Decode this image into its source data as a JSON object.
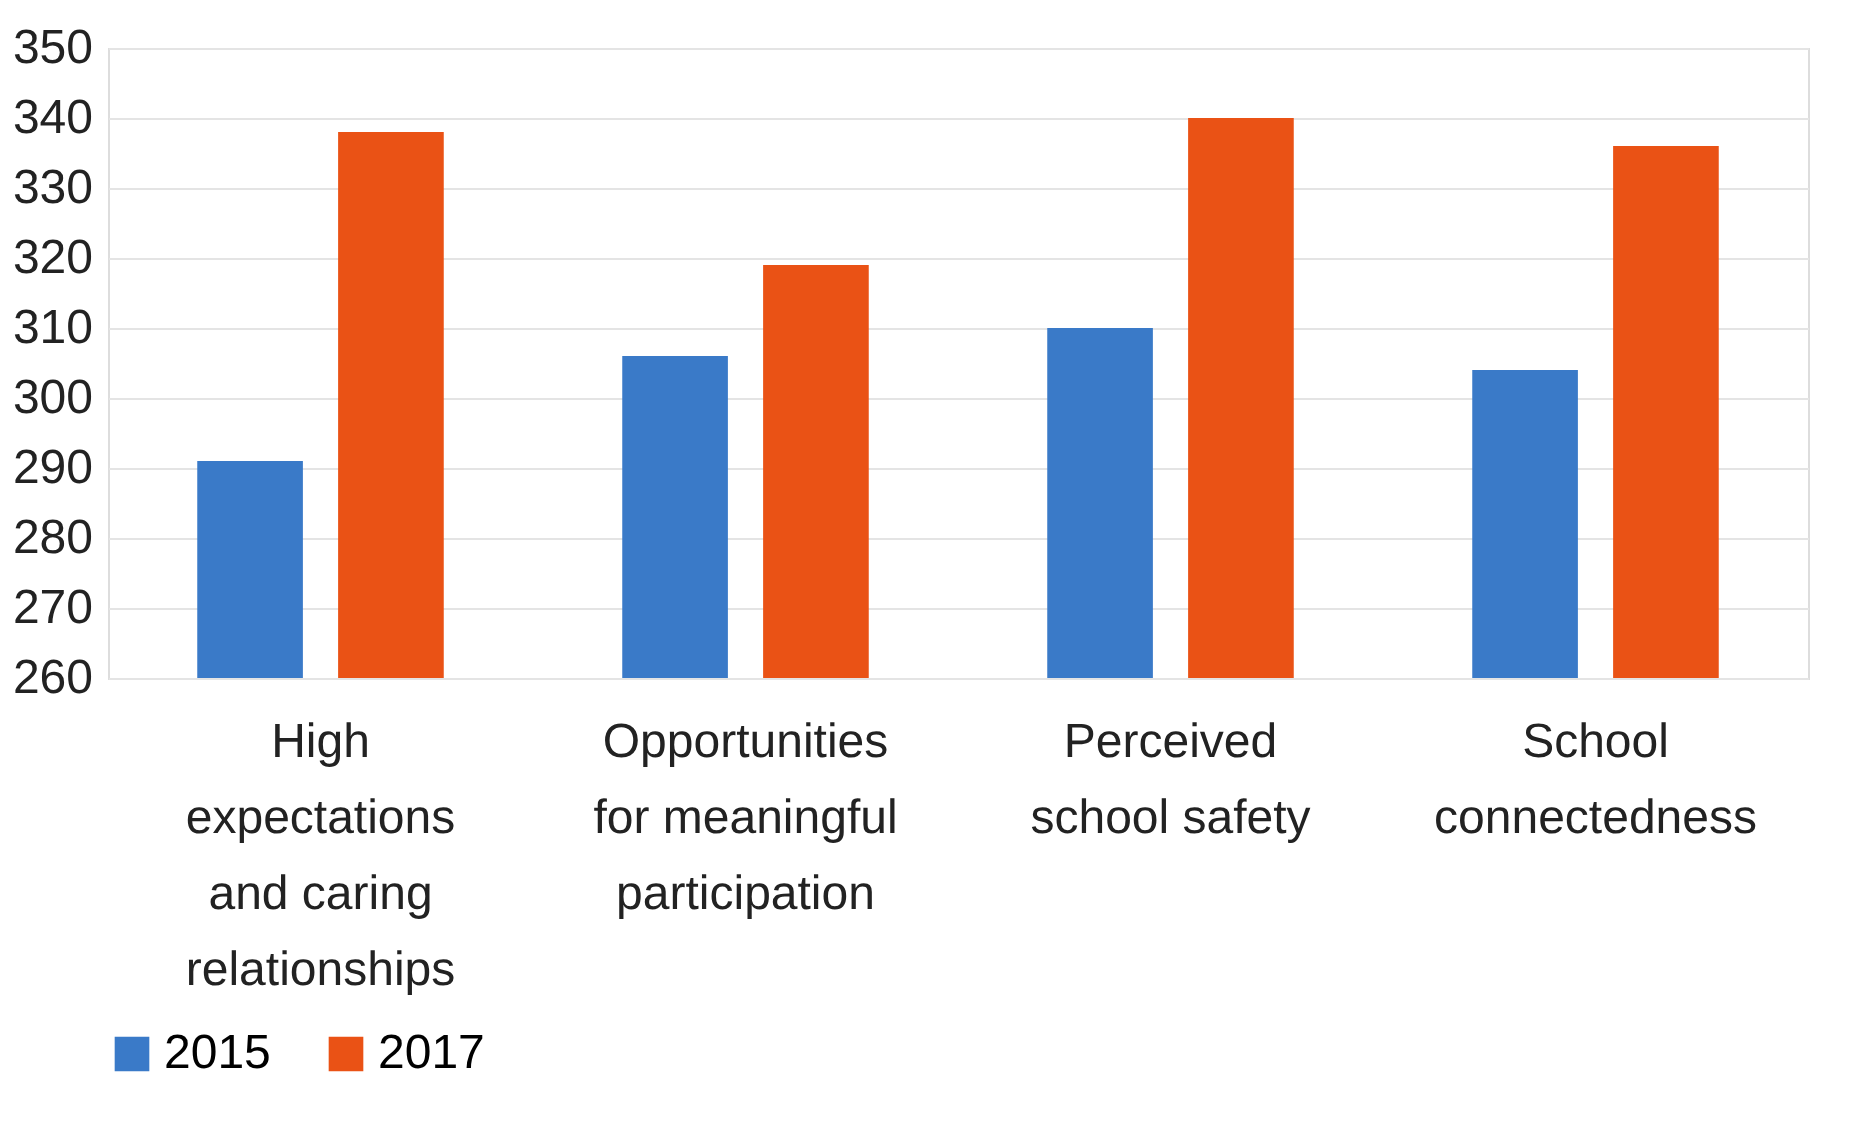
{
  "chart_data": {
    "type": "bar",
    "categories": [
      "High expectations and caring relationships",
      "Opportunities for meaningful participation",
      "Perceived school safety",
      "School connectedness"
    ],
    "series": [
      {
        "name": "2015",
        "color": "#3a7ac8",
        "values": [
          291,
          306,
          310,
          304
        ]
      },
      {
        "name": "2017",
        "color": "#ea5215",
        "values": [
          338,
          319,
          340,
          336
        ]
      }
    ],
    "ylim": [
      260,
      350
    ],
    "yticks": [
      260,
      270,
      280,
      290,
      300,
      310,
      320,
      330,
      340,
      350
    ],
    "grid": "y",
    "legend": "bottom"
  }
}
